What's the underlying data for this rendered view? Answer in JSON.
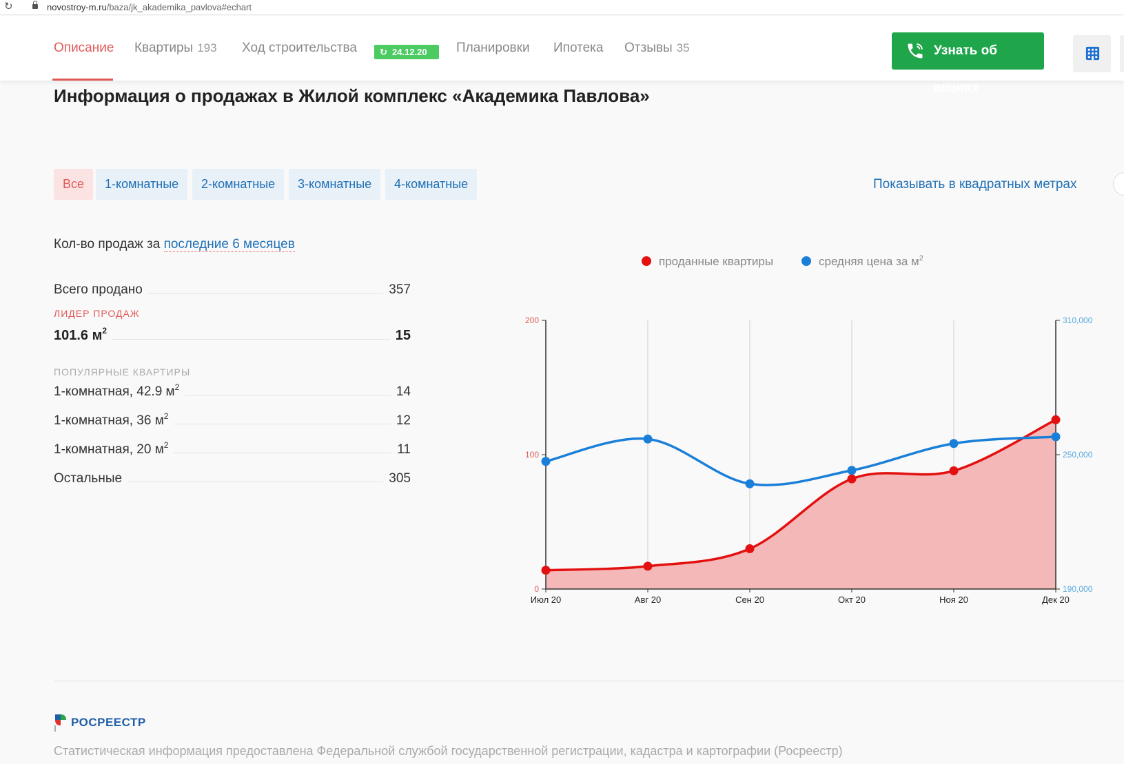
{
  "browser": {
    "domain": "novostroy-m.ru",
    "path": "/baza/jk_akademika_pavlova#echart"
  },
  "nav": {
    "tabs": [
      {
        "label": "Описание",
        "count": ""
      },
      {
        "label": "Квартиры",
        "count": "193"
      },
      {
        "label": "Ход строительства",
        "count": ""
      },
      {
        "label": "Планировки",
        "count": ""
      },
      {
        "label": "Ипотека",
        "count": ""
      },
      {
        "label": "Отзывы",
        "count": "35"
      }
    ],
    "construction_badge": "24.12.20",
    "cta_label": "Узнать об акциях",
    "accent_color": "#e05a5a",
    "cta_color": "#1fa64b"
  },
  "page_title": "Информация о продажах в Жилой комплекс «Академика Павлова»",
  "filters": {
    "items": [
      "Все",
      "1-комнатные",
      "2-комнатные",
      "3-комнатные",
      "4-комнатные"
    ],
    "selected": "Все",
    "units_toggle_label": "Показывать в квадратных метрах"
  },
  "stats": {
    "period_prefix": "Кол-во продаж за",
    "period_link": "последние 6 месяцев",
    "total_label": "Всего продано",
    "total_value": "357",
    "leader_caption": "ЛИДЕР ПРОДАЖ",
    "leader_label": "101.6 м",
    "leader_value": "15",
    "popular_caption": "ПОПУЛЯРНЫЕ КВАРТИРЫ",
    "popular": [
      {
        "label": "1-комнатная, 42.9 м",
        "value": "14"
      },
      {
        "label": "1-комнатная, 36 м",
        "value": "12"
      },
      {
        "label": "1-комнатная, 20 м",
        "value": "11"
      }
    ],
    "rest_label": "Остальные",
    "rest_value": "305"
  },
  "chart_data": {
    "type": "line",
    "categories": [
      "Июл 20",
      "Авг 20",
      "Сен 20",
      "Окт 20",
      "Ноя 20",
      "Дек 20"
    ],
    "series": [
      {
        "name": "проданные квартиры",
        "axis": "left",
        "color": "#e31010",
        "fill": "#f5b8b8",
        "area": true,
        "values": [
          14,
          17,
          30,
          82,
          88,
          126
        ]
      },
      {
        "name": "средняя цена за м",
        "name_sup": "2",
        "axis": "right",
        "color": "#1a7fd8",
        "area": false,
        "values": [
          247000,
          257000,
          237000,
          243000,
          255000,
          258000
        ]
      }
    ],
    "y_left": {
      "min": 0,
      "max": 200,
      "ticks": [
        "0",
        "100",
        "200"
      ]
    },
    "y_right": {
      "min": 190000,
      "max": 310000,
      "ticks": [
        "190,000",
        "250,000",
        "310,000"
      ]
    },
    "grid": "vertical",
    "legend": "top"
  },
  "footer": {
    "source_name": "РОСРЕЕСТР",
    "source_note": "Статистическая информация предоставлена Федеральной службой государственной регистрации, кадастра и картографии (Росреестр)"
  }
}
